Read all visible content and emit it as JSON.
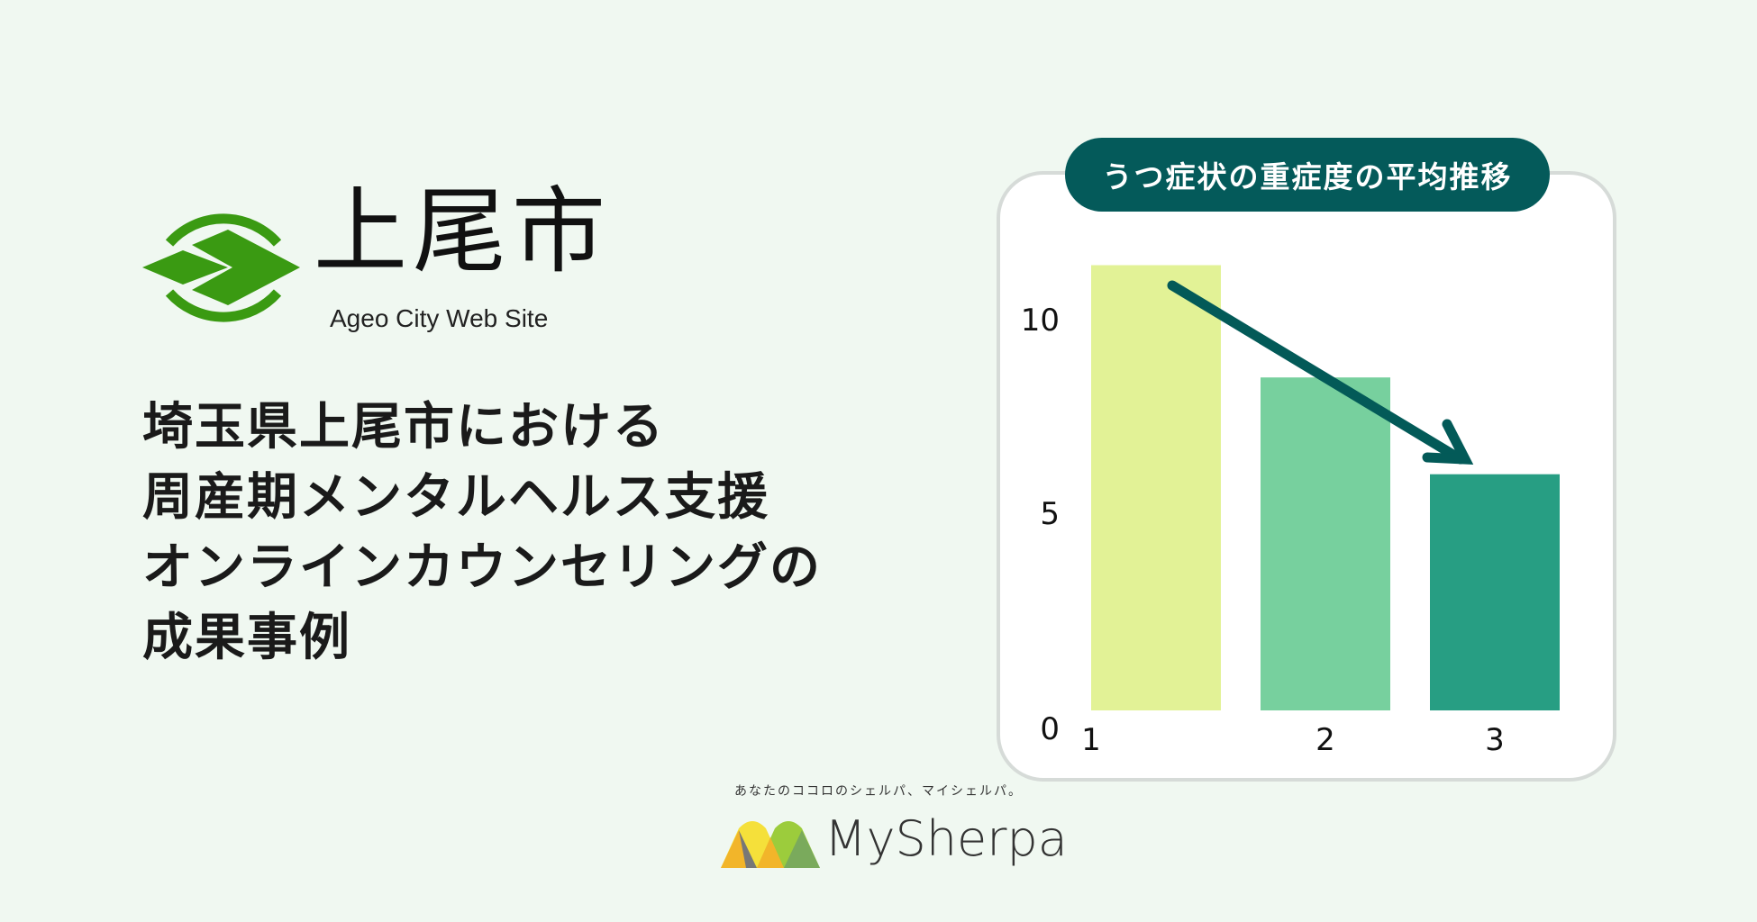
{
  "logo": {
    "city_name": "上尾市",
    "subtitle": "Ageo City Web Site",
    "mark_color": "#3a9a12"
  },
  "heading": {
    "lines": [
      "埼玉県上尾市における",
      "周産期メンタルヘルス支援",
      "オンラインカウンセリングの",
      "成果事例"
    ]
  },
  "chart_data": {
    "type": "bar",
    "title": "うつ症状の重症度の平均推移",
    "categories": [
      "1",
      "2",
      "3"
    ],
    "values": [
      11.5,
      8.6,
      6.1
    ],
    "colors": [
      "#e2f296",
      "#77d09e",
      "#279e83"
    ],
    "yticks": [
      "0",
      "5",
      "10"
    ],
    "ylim": [
      0,
      12
    ],
    "grid": false,
    "annotation": "downward arrow from bar 1 to bar 3",
    "arrow_color": "#035a58"
  },
  "footer": {
    "tagline": "あなたのココロのシェルパ、マイシェルパ。",
    "brand": "MySherpa"
  }
}
